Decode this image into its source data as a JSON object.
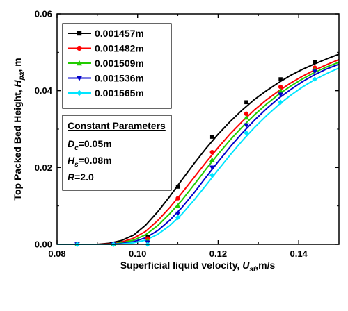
{
  "chart_data": {
    "type": "line",
    "xlabel_main": "Superficial liquid velocity, ",
    "xlabel_sym": "U",
    "xlabel_sub": "sf",
    "xlabel_unit": ",m/s",
    "ylabel_main": "Top Packed Bed Height, ",
    "ylabel_sym": "H",
    "ylabel_sub": "pa",
    "ylabel_unit": ", m",
    "xlim": [
      0.08,
      0.15
    ],
    "ylim": [
      0.0,
      0.06
    ],
    "xticks": [
      {
        "value": 0.08,
        "label": "0.08"
      },
      {
        "value": 0.1,
        "label": "0.10"
      },
      {
        "value": 0.12,
        "label": "0.12"
      },
      {
        "value": 0.14,
        "label": "0.14"
      }
    ],
    "yticks": [
      {
        "value": 0.0,
        "label": "0.00"
      },
      {
        "value": 0.02,
        "label": "0.02"
      },
      {
        "value": 0.04,
        "label": "0.04"
      },
      {
        "value": 0.06,
        "label": "0.06"
      }
    ],
    "legend_position": "top-left",
    "series": [
      {
        "name": "0.001457m",
        "color": "#000000",
        "marker": "square",
        "x": [
          0.085,
          0.094,
          0.1025,
          0.11,
          0.1185,
          0.127,
          0.1355,
          0.144
        ],
        "y": [
          0.0,
          0.0,
          0.002,
          0.015,
          0.028,
          0.037,
          0.043,
          0.0475
        ],
        "curve_x": [
          0.08,
          0.085,
          0.09,
          0.093,
          0.096,
          0.099,
          0.102,
          0.105,
          0.108,
          0.111,
          0.114,
          0.117,
          0.12,
          0.123,
          0.126,
          0.129,
          0.132,
          0.135,
          0.138,
          0.141,
          0.144,
          0.147,
          0.15
        ],
        "curve_y": [
          0.0,
          0.0,
          0.0,
          0.0003,
          0.001,
          0.0024,
          0.005,
          0.0085,
          0.0125,
          0.0168,
          0.021,
          0.025,
          0.0287,
          0.032,
          0.035,
          0.0377,
          0.04,
          0.0421,
          0.044,
          0.0456,
          0.047,
          0.0483,
          0.0495
        ]
      },
      {
        "name": "0.001482m",
        "color": "#ff0000",
        "marker": "circle",
        "x": [
          0.085,
          0.094,
          0.1025,
          0.11,
          0.1185,
          0.127,
          0.1355,
          0.144
        ],
        "y": [
          0.0,
          0.0,
          0.0015,
          0.012,
          0.024,
          0.034,
          0.041,
          0.046
        ],
        "curve_x": [
          0.08,
          0.085,
          0.09,
          0.093,
          0.096,
          0.099,
          0.102,
          0.105,
          0.108,
          0.111,
          0.114,
          0.117,
          0.12,
          0.123,
          0.126,
          0.129,
          0.132,
          0.135,
          0.138,
          0.141,
          0.144,
          0.147,
          0.15
        ],
        "curve_y": [
          0.0,
          0.0,
          0.0,
          0.0001,
          0.0006,
          0.0016,
          0.0034,
          0.0062,
          0.0096,
          0.0134,
          0.0174,
          0.0214,
          0.0252,
          0.0288,
          0.032,
          0.035,
          0.0376,
          0.0399,
          0.042,
          0.0438,
          0.0454,
          0.0468,
          0.0481
        ]
      },
      {
        "name": "0.001509m",
        "color": "#22cc00",
        "marker": "triangle-up",
        "x": [
          0.085,
          0.094,
          0.1025,
          0.11,
          0.1185,
          0.127,
          0.1355,
          0.144
        ],
        "y": [
          0.0,
          0.0,
          0.001,
          0.01,
          0.022,
          0.033,
          0.04,
          0.0455
        ],
        "curve_x": [
          0.08,
          0.085,
          0.09,
          0.093,
          0.096,
          0.099,
          0.102,
          0.105,
          0.108,
          0.111,
          0.114,
          0.117,
          0.12,
          0.123,
          0.126,
          0.129,
          0.132,
          0.135,
          0.138,
          0.141,
          0.144,
          0.147,
          0.15
        ],
        "curve_y": [
          0.0,
          0.0,
          0.0,
          0.0,
          0.0004,
          0.0011,
          0.0025,
          0.0049,
          0.008,
          0.0115,
          0.0155,
          0.0196,
          0.0235,
          0.0272,
          0.0306,
          0.0337,
          0.0365,
          0.039,
          0.0412,
          0.0431,
          0.0448,
          0.0462,
          0.0474
        ]
      },
      {
        "name": "0.001536m",
        "color": "#0000cc",
        "marker": "triangle-down",
        "x": [
          0.085,
          0.094,
          0.1025,
          0.11,
          0.1185,
          0.127,
          0.1355,
          0.144
        ],
        "y": [
          0.0,
          0.0,
          0.0005,
          0.008,
          0.02,
          0.031,
          0.039,
          0.045
        ],
        "curve_x": [
          0.08,
          0.085,
          0.09,
          0.093,
          0.096,
          0.099,
          0.102,
          0.105,
          0.108,
          0.111,
          0.114,
          0.117,
          0.12,
          0.123,
          0.126,
          0.129,
          0.132,
          0.135,
          0.138,
          0.141,
          0.144,
          0.147,
          0.15
        ],
        "curve_y": [
          0.0,
          0.0,
          0.0,
          0.0,
          0.0002,
          0.0007,
          0.0017,
          0.0036,
          0.0063,
          0.0096,
          0.0134,
          0.0175,
          0.0215,
          0.0254,
          0.029,
          0.0323,
          0.0353,
          0.038,
          0.0403,
          0.0424,
          0.0442,
          0.0457,
          0.0469
        ]
      },
      {
        "name": "0.001565m",
        "color": "#00e5ff",
        "marker": "diamond",
        "x": [
          0.085,
          0.094,
          0.1025,
          0.11,
          0.1185,
          0.127,
          0.1355,
          0.144
        ],
        "y": [
          0.0,
          0.0,
          0.0,
          0.007,
          0.018,
          0.029,
          0.037,
          0.043
        ],
        "curve_x": [
          0.08,
          0.085,
          0.09,
          0.093,
          0.096,
          0.099,
          0.102,
          0.105,
          0.108,
          0.111,
          0.114,
          0.117,
          0.12,
          0.123,
          0.126,
          0.129,
          0.132,
          0.135,
          0.138,
          0.141,
          0.144,
          0.147,
          0.15
        ],
        "curve_y": [
          0.0,
          0.0,
          0.0,
          0.0,
          0.0001,
          0.0004,
          0.0011,
          0.0026,
          0.0049,
          0.0079,
          0.0115,
          0.0154,
          0.0194,
          0.0233,
          0.027,
          0.0304,
          0.0335,
          0.0363,
          0.0388,
          0.041,
          0.0429,
          0.0445,
          0.0459
        ]
      }
    ],
    "params": {
      "heading": "Constant Parameters",
      "items": [
        {
          "sym": "D",
          "sub": "c",
          "value": "=0.05m"
        },
        {
          "sym": "H",
          "sub": "s",
          "value": "=0.08m"
        },
        {
          "sym": "R",
          "sub": "",
          "value": "=2.0"
        }
      ]
    }
  }
}
